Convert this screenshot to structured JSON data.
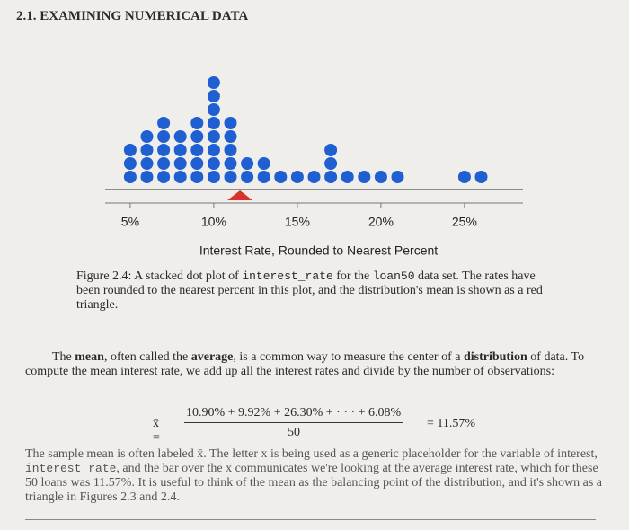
{
  "header": {
    "title": "2.1. EXAMINING NUMERICAL DATA"
  },
  "chart_data": {
    "type": "dotplot",
    "xlabel": "Interest Rate, Rounded to Nearest Percent",
    "xlim": [
      3.5,
      28.5
    ],
    "xticks": [
      {
        "value": 5,
        "label": "5%"
      },
      {
        "value": 10,
        "label": "10%"
      },
      {
        "value": 15,
        "label": "15%"
      },
      {
        "value": 20,
        "label": "20%"
      },
      {
        "value": 25,
        "label": "25%"
      }
    ],
    "x": [
      5,
      6,
      7,
      8,
      9,
      10,
      11,
      12,
      13,
      14,
      15,
      16,
      17,
      18,
      19,
      20,
      21,
      25,
      26
    ],
    "values": [
      3,
      4,
      5,
      4,
      5,
      8,
      5,
      2,
      2,
      1,
      1,
      1,
      3,
      1,
      1,
      1,
      1,
      1,
      1
    ],
    "color": "#1f5fd1",
    "mean": 11.57,
    "mean_color": "#d9342b"
  },
  "caption": [
    {
      "text": "Figure 2.4: A stacked dot plot of ",
      "style": "plain"
    },
    {
      "text": "interest_rate",
      "style": "code"
    },
    {
      "text": " for the ",
      "style": "plain"
    },
    {
      "text": "loan50",
      "style": "code"
    },
    {
      "text": " data set. The rates have been rounded to the nearest percent in this plot, and the distribution's mean is shown as a red triangle.",
      "style": "plain"
    }
  ],
  "paragraph1": [
    {
      "text": "The ",
      "style": "plain"
    },
    {
      "text": "mean",
      "style": "bold"
    },
    {
      "text": ", often called the ",
      "style": "plain"
    },
    {
      "text": "average",
      "style": "bold"
    },
    {
      "text": ", is a common way to measure the center of a ",
      "style": "plain"
    },
    {
      "text": "distribution",
      "style": "bold"
    },
    {
      "text": " of data. To compute the mean interest rate, we add up all the interest rates and divide by the number of observations:",
      "style": "plain"
    }
  ],
  "equation": {
    "lhs": "x̄ =",
    "numerator": "10.90% + 9.92% + 26.30% + · · · + 6.08%",
    "denominator": "50",
    "rhs": "= 11.57%"
  },
  "paragraph2": [
    {
      "text": "The sample mean is often labeled x̄. The letter x is being used as a generic placeholder for the variable of interest, ",
      "style": "plain"
    },
    {
      "text": "interest_rate",
      "style": "code"
    },
    {
      "text": ", and the bar over the x communicates we're looking at the average interest rate, which for these 50 loans was 11.57%. It is useful to think of the mean as the balancing point of the distribution, and it's shown as a triangle in Figures 2.3 and 2.4.",
      "style": "plain"
    }
  ]
}
